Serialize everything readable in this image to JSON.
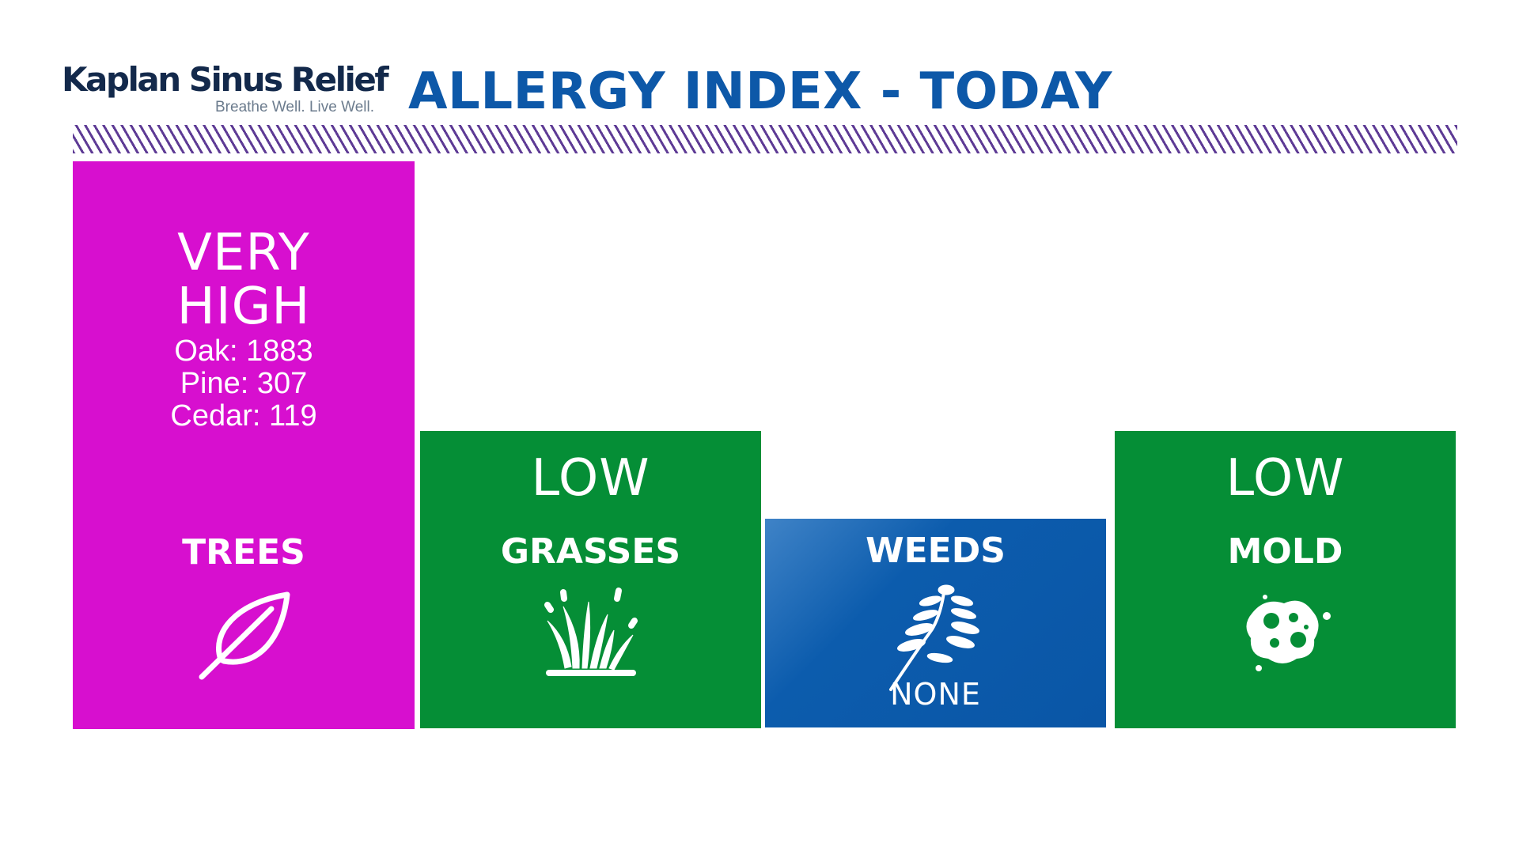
{
  "brand": {
    "name": "Kaplan Sinus Relief",
    "tagline": "Breathe Well.  Live Well."
  },
  "title": "ALLERGY INDEX - TODAY",
  "colors": {
    "title": "#0d58a8",
    "stripe": "#5e3b95",
    "very_high": "#d70fcf",
    "low": "#058e36",
    "none": "#0c5cad"
  },
  "categories": [
    {
      "category": "TREES",
      "level_line1": "VERY",
      "level_line2": "HIGH",
      "counts": [
        "Oak: 1883",
        "Pine: 307",
        "Cedar: 119"
      ],
      "icon": "leaf-icon"
    },
    {
      "category": "GRASSES",
      "level": "LOW",
      "icon": "grass-icon"
    },
    {
      "category": "WEEDS",
      "level": "NONE",
      "icon": "weed-icon"
    },
    {
      "category": "MOLD",
      "level": "LOW",
      "icon": "mold-icon"
    }
  ]
}
